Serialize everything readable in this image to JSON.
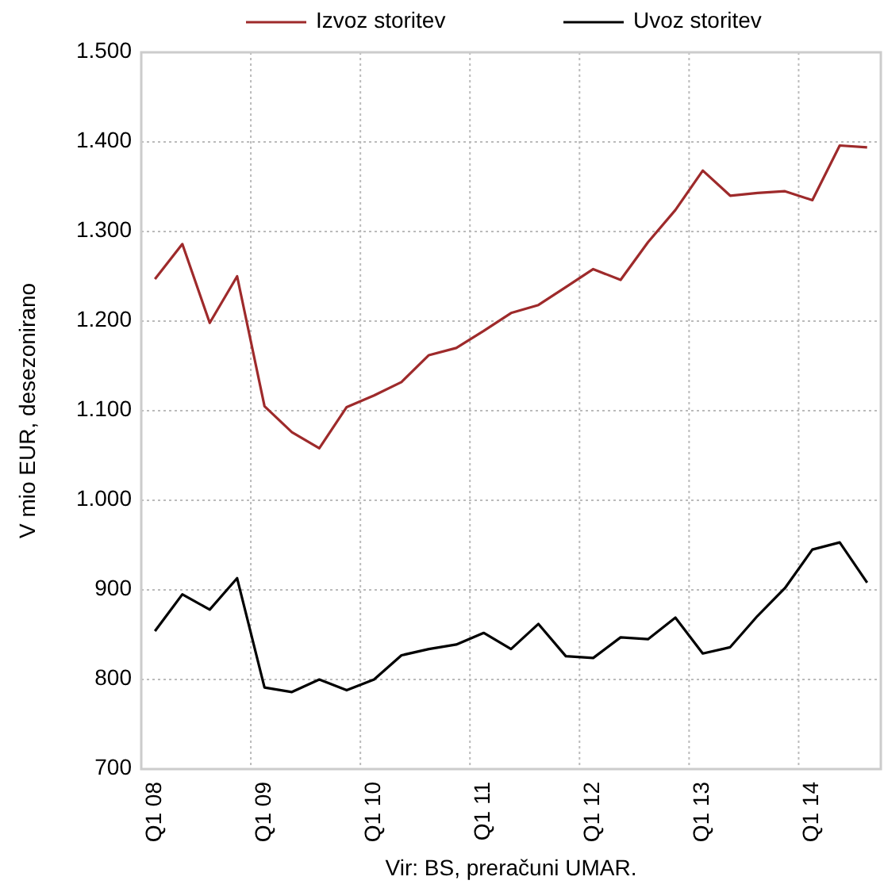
{
  "chart_data": {
    "type": "line",
    "ylabel": "V mio EUR, desezonirano",
    "categories": [
      "Q1 08",
      null,
      null,
      null,
      "Q1 09",
      null,
      null,
      null,
      "Q1 10",
      null,
      null,
      null,
      "Q1 11",
      null,
      null,
      null,
      "Q1 12",
      null,
      null,
      null,
      "Q1 13",
      null,
      null,
      null,
      "Q1 14",
      null,
      null
    ],
    "series": [
      {
        "name": "Izvoz storitev",
        "color": "#9e2a2b",
        "values": [
          1247,
          1286,
          1198,
          1250,
          1105,
          1076,
          1058,
          1104,
          1117,
          1132,
          1162,
          1170,
          1189,
          1209,
          1218,
          1238,
          1258,
          1246,
          1288,
          1324,
          1368,
          1340,
          1343,
          1345,
          1335,
          1396,
          1394
        ]
      },
      {
        "name": "Uvoz storitev",
        "color": "#000000",
        "values": [
          854,
          895,
          878,
          913,
          791,
          786,
          800,
          788,
          800,
          827,
          834,
          839,
          852,
          834,
          862,
          826,
          824,
          847,
          845,
          869,
          829,
          836,
          871,
          902,
          945,
          953,
          908
        ]
      }
    ],
    "ylim": [
      700,
      1500
    ],
    "yticks": [
      {
        "value": 700,
        "label": "700"
      },
      {
        "value": 800,
        "label": "800"
      },
      {
        "value": 900,
        "label": "900"
      },
      {
        "value": 1000,
        "label": "1.000"
      },
      {
        "value": 1100,
        "label": "1.100"
      },
      {
        "value": 1200,
        "label": "1.200"
      },
      {
        "value": 1300,
        "label": "1.300"
      },
      {
        "value": 1400,
        "label": "1.400"
      },
      {
        "value": 1500,
        "label": "1.500"
      }
    ],
    "grid": true,
    "legend": "top",
    "line_style": "solid",
    "marker": "none",
    "annotations": [
      "Vir: BS, preračuni UMAR."
    ]
  }
}
